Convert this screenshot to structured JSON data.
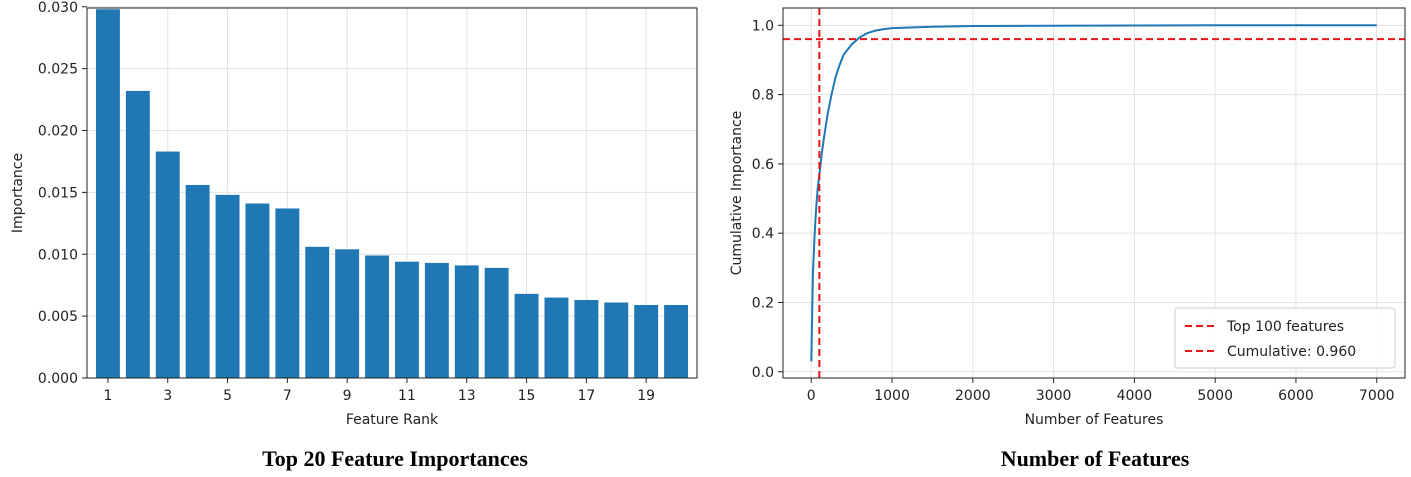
{
  "captions": {
    "left": "Top 20 Feature Importances",
    "right": "Number of Features"
  },
  "colors": {
    "bar": "#1f77b4",
    "line": "#1f77b4",
    "ref": "#e8161b",
    "grid": "#e2e2e2"
  },
  "chart_data": [
    {
      "type": "bar",
      "title": "",
      "xlabel": "Feature Rank",
      "ylabel": "Importance",
      "categories": [
        1,
        2,
        3,
        4,
        5,
        6,
        7,
        8,
        9,
        10,
        11,
        12,
        13,
        14,
        15,
        16,
        17,
        18,
        19,
        20
      ],
      "values": [
        0.0298,
        0.0232,
        0.0183,
        0.0156,
        0.0148,
        0.0141,
        0.0137,
        0.0106,
        0.0104,
        0.0099,
        0.0094,
        0.0093,
        0.0091,
        0.0089,
        0.0068,
        0.0065,
        0.0063,
        0.0061,
        0.0059,
        0.0059
      ],
      "xticks": [
        "1",
        "3",
        "5",
        "7",
        "9",
        "11",
        "13",
        "15",
        "17",
        "19"
      ],
      "yticks": [
        "0.000",
        "0.005",
        "0.010",
        "0.015",
        "0.020",
        "0.025",
        "0.030"
      ],
      "ylim": [
        0,
        0.0299
      ],
      "grid": true
    },
    {
      "type": "line",
      "title": "",
      "xlabel": "Number of Features",
      "ylabel": "Cumulative Importance",
      "series": [
        {
          "x": [
            0,
            20,
            40,
            60,
            80,
            100,
            130,
            160,
            200,
            250,
            300,
            350,
            400,
            500,
            600,
            700,
            800,
            900,
            1000,
            1500,
            2000,
            3000,
            4000,
            5000,
            6000,
            7000
          ],
          "y": [
            0.03,
            0.28,
            0.39,
            0.47,
            0.53,
            0.57,
            0.63,
            0.68,
            0.74,
            0.8,
            0.85,
            0.885,
            0.915,
            0.945,
            0.965,
            0.978,
            0.985,
            0.989,
            0.992,
            0.996,
            0.998,
            0.999,
            0.9995,
            1.0,
            1.0,
            1.0
          ]
        }
      ],
      "reference_lines": [
        {
          "orientation": "vertical",
          "x": 100,
          "label": "Top 100 features"
        },
        {
          "orientation": "horizontal",
          "y": 0.96,
          "label": "Cumulative: 0.960"
        }
      ],
      "legend": {
        "placement": "lower-right",
        "entries": [
          "Top 100 features",
          "Cumulative: 0.960"
        ]
      },
      "xticks": [
        "0",
        "1000",
        "2000",
        "3000",
        "4000",
        "5000",
        "6000",
        "7000"
      ],
      "yticks": [
        "0.0",
        "0.2",
        "0.4",
        "0.6",
        "0.8",
        "1.0"
      ],
      "xlim": [
        -350,
        7350
      ],
      "ylim": [
        -0.018,
        1.05
      ],
      "grid": true
    }
  ]
}
